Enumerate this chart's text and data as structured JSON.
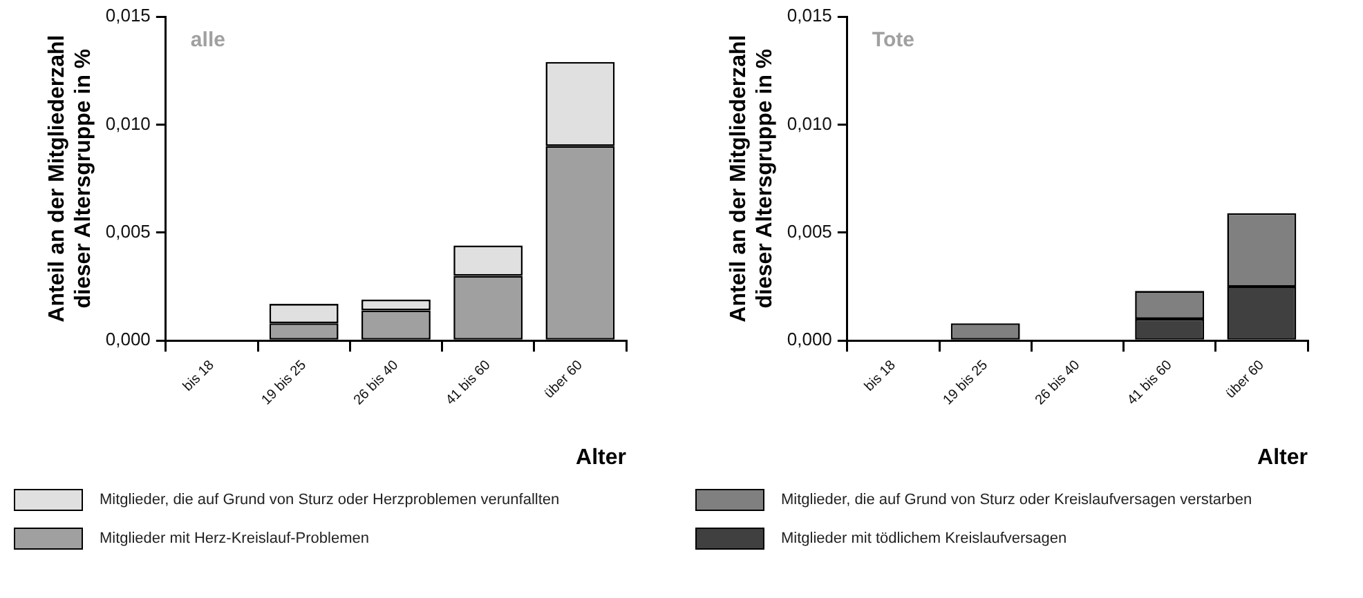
{
  "chart_data": [
    {
      "type": "bar",
      "title": "alle",
      "ylabel": "Anteil an der Mitgliederzahl\ndieser Altersgruppe in %",
      "xlabel": "Alter",
      "categories": [
        "bis 18",
        "19 bis 25",
        "26 bis 40",
        "41 bis 60",
        "über 60"
      ],
      "stacked": true,
      "legend": "bottom",
      "grid": false,
      "ylim": [
        0,
        0.015
      ],
      "yticks": [
        {
          "value": 0,
          "label": "0,000"
        },
        {
          "value": 0.005,
          "label": "0,005"
        },
        {
          "value": 0.01,
          "label": "0,010"
        },
        {
          "value": 0.015,
          "label": "0,015"
        }
      ],
      "series": [
        {
          "name": "Mitglieder mit Herz-Kreislauf-Problemen",
          "color": "#a0a0a0",
          "values": [
            0,
            0.0008,
            0.0014,
            0.003,
            0.009
          ]
        },
        {
          "name": "Mitglieder, die auf Grund von Sturz oder Herzproblemen verunfallten",
          "color": "#e0e0e0",
          "values": [
            0,
            0.0009,
            0.0005,
            0.0014,
            0.0039
          ]
        }
      ]
    },
    {
      "type": "bar",
      "title": "Tote",
      "ylabel": "Anteil an der Mitgliederzahl\ndieser Altersgruppe in %",
      "xlabel": "Alter",
      "categories": [
        "bis 18",
        "19 bis 25",
        "26 bis 40",
        "41 bis 60",
        "über 60"
      ],
      "stacked": true,
      "legend": "bottom",
      "grid": false,
      "ylim": [
        0,
        0.015
      ],
      "yticks": [
        {
          "value": 0,
          "label": "0,000"
        },
        {
          "value": 0.005,
          "label": "0,005"
        },
        {
          "value": 0.01,
          "label": "0,010"
        },
        {
          "value": 0.015,
          "label": "0,015"
        }
      ],
      "series": [
        {
          "name": "Mitglieder mit tödlichem Kreislaufversagen",
          "color": "#404040",
          "values": [
            0,
            0,
            0,
            0.001,
            0.0025
          ]
        },
        {
          "name": "Mitglieder, die auf Grund von Sturz oder Kreislaufversagen verstarben",
          "color": "#808080",
          "values": [
            0,
            0.0008,
            0,
            0.0013,
            0.0034
          ]
        }
      ]
    }
  ]
}
